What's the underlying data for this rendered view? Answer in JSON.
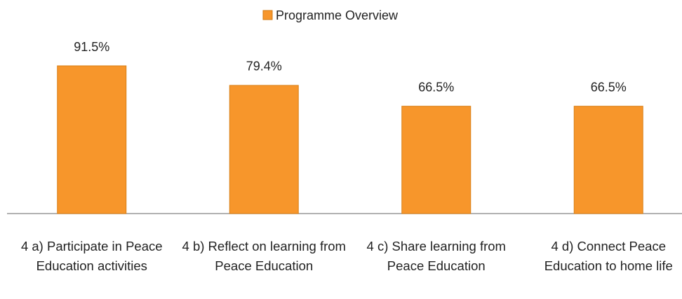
{
  "chart_data": {
    "type": "bar",
    "categories": [
      "4 a) Participate in Peace Education activities",
      "4 b) Reflect on learning from Peace Education",
      "4 c) Share learning from Peace Education",
      "4 d) Connect Peace Education to home life"
    ],
    "series": [
      {
        "name": "Programme Overview",
        "color": "#f7962b",
        "values": [
          91.5,
          79.4,
          66.5,
          66.5
        ],
        "value_labels": [
          "91.5%",
          "79.4%",
          "66.5%",
          "66.5%"
        ]
      }
    ],
    "ylim": [
      0,
      100
    ],
    "legend": "top"
  }
}
